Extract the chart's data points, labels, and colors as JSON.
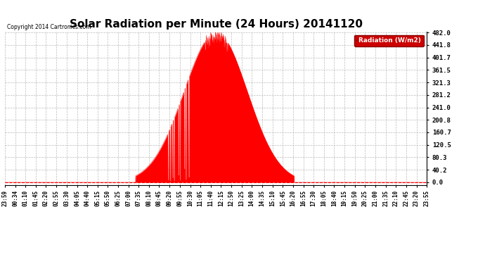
{
  "title": "Solar Radiation per Minute (24 Hours) 20141120",
  "copyright_text": "Copyright 2014 Cartronics.com",
  "ylabel": "Radiation (W/m2)",
  "yticks": [
    0.0,
    40.2,
    80.3,
    120.5,
    160.7,
    200.8,
    241.0,
    281.2,
    321.3,
    361.5,
    401.7,
    441.8,
    482.0
  ],
  "ymax": 482.0,
  "fill_color": "#ff0000",
  "line_color": "#ff0000",
  "background_color": "#ffffff",
  "grid_color": "#aaaaaa",
  "title_fontsize": 11,
  "legend_label": "Radiation (W/m2)",
  "legend_bg": "#cc0000",
  "xtick_labels": [
    "23:59",
    "00:34",
    "01:10",
    "01:45",
    "02:20",
    "02:55",
    "03:30",
    "04:05",
    "04:40",
    "05:15",
    "05:50",
    "06:25",
    "07:00",
    "07:35",
    "08:10",
    "08:45",
    "09:20",
    "09:55",
    "10:30",
    "11:05",
    "11:40",
    "12:15",
    "12:50",
    "13:25",
    "14:00",
    "14:35",
    "15:10",
    "15:45",
    "16:20",
    "16:55",
    "17:30",
    "18:05",
    "18:40",
    "19:15",
    "19:50",
    "20:25",
    "21:00",
    "21:35",
    "22:10",
    "22:45",
    "23:20",
    "23:55"
  ],
  "sunrise_min": 445,
  "sunset_min": 985,
  "solar_noon_min": 720,
  "peak_radiation": 482.0,
  "cloud_dip_times": [
    555,
    556,
    557,
    570,
    571,
    572,
    590,
    591,
    592,
    610,
    611,
    612,
    625,
    626,
    627
  ],
  "cloud_dip_depths": [
    0.05,
    0.05,
    0.05,
    0.08,
    0.08,
    0.08,
    0.1,
    0.1,
    0.1,
    0.15,
    0.15,
    0.15,
    0.05,
    0.05,
    0.05
  ]
}
